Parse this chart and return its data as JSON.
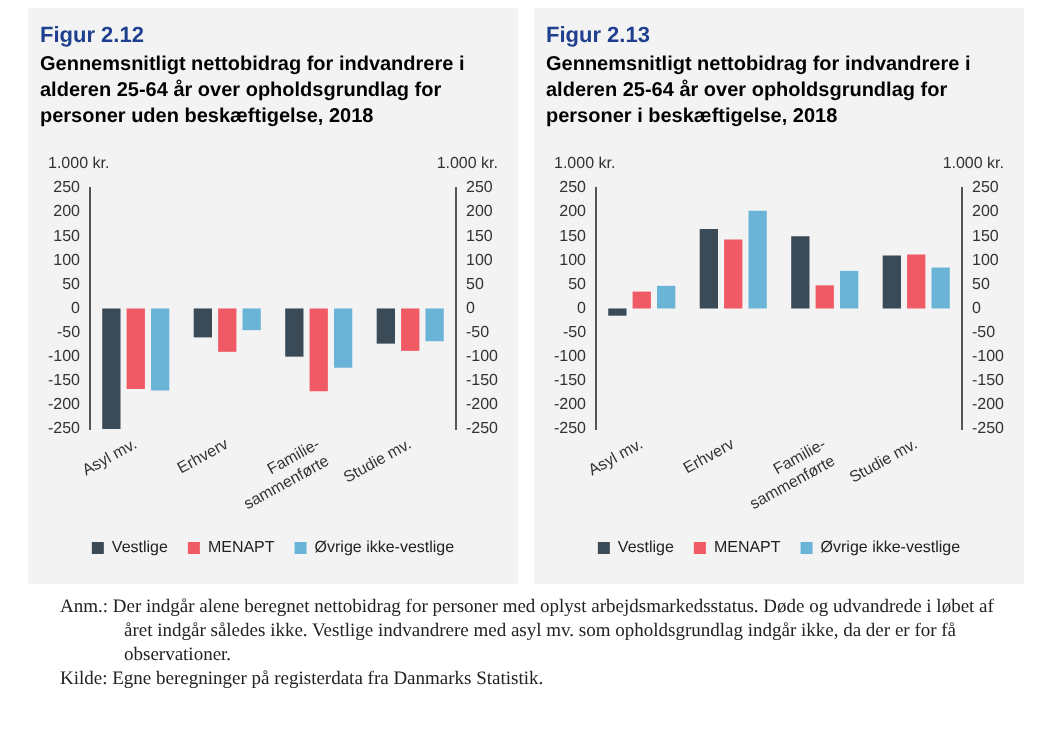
{
  "chart_data": [
    {
      "type": "bar",
      "title": "Figur 2.12",
      "subtitle": "Gennemsnitligt nettobidrag for indvandrere i alderen 25-64 år over opholdsgrundlag for personer uden beskæftigelse, 2018",
      "ylabel": "1.000 kr.",
      "y2label": "1.000 kr.",
      "categories": [
        "Asyl mv.",
        "Erhverv",
        "Familie-sammenførte",
        "Studie mv."
      ],
      "series": [
        {
          "name": "Vestlige",
          "color": "#3b4a57",
          "values": [
            -250,
            -60,
            -100,
            -73
          ]
        },
        {
          "name": "MENAPT",
          "color": "#f05a64",
          "values": [
            -167,
            -90,
            -172,
            -88
          ]
        },
        {
          "name": "Øvrige ikke-vestlige",
          "color": "#6ab4d8",
          "values": [
            -170,
            -45,
            -123,
            -68
          ]
        }
      ],
      "ylim": [
        -250,
        250
      ],
      "yticks": [
        -250,
        -200,
        -150,
        -100,
        -50,
        0,
        50,
        100,
        150,
        200,
        250
      ],
      "y2lim": [
        -250,
        250
      ],
      "y2ticks": [
        -250,
        -200,
        -150,
        -100,
        -50,
        0,
        50,
        100,
        150,
        200,
        250
      ],
      "grid": false,
      "legend": "bottom",
      "annotations": [
        "Anm.: Der indgår alene beregnet nettobidrag for personer med oplyst arbejdsmarkedsstatus. Døde og udvandrede i løbet af året indgår således ikke. Vestlige indvandrere med asyl mv. som opholdsgrundlag indgår ikke, da der er for få observationer.",
        "Kilde: Egne beregninger på registerdata fra Danmarks Statistik."
      ]
    },
    {
      "type": "bar",
      "title": "Figur 2.13",
      "subtitle": "Gennemsnitligt nettobidrag for indvandrere i alderen 25-64 år over opholdsgrundlag for personer i beskæftigelse, 2018",
      "ylabel": "1.000 kr.",
      "y2label": "1.000 kr.",
      "categories": [
        "Asyl mv.",
        "Erhverv",
        "Familie-sammenførte",
        "Studie mv."
      ],
      "series": [
        {
          "name": "Vestlige",
          "color": "#3b4a57",
          "values": [
            -15,
            165,
            150,
            110
          ]
        },
        {
          "name": "MENAPT",
          "color": "#f05a64",
          "values": [
            35,
            143,
            48,
            112
          ]
        },
        {
          "name": "Øvrige ikke-vestlige",
          "color": "#6ab4d8",
          "values": [
            47,
            203,
            78,
            85
          ]
        }
      ],
      "ylim": [
        -250,
        250
      ],
      "yticks": [
        -250,
        -200,
        -150,
        -100,
        -50,
        0,
        50,
        100,
        150,
        200,
        250
      ],
      "y2lim": [
        -250,
        250
      ],
      "y2ticks": [
        -250,
        -200,
        -150,
        -100,
        -50,
        0,
        50,
        100,
        150,
        200,
        250
      ],
      "grid": false,
      "legend": "bottom"
    }
  ]
}
